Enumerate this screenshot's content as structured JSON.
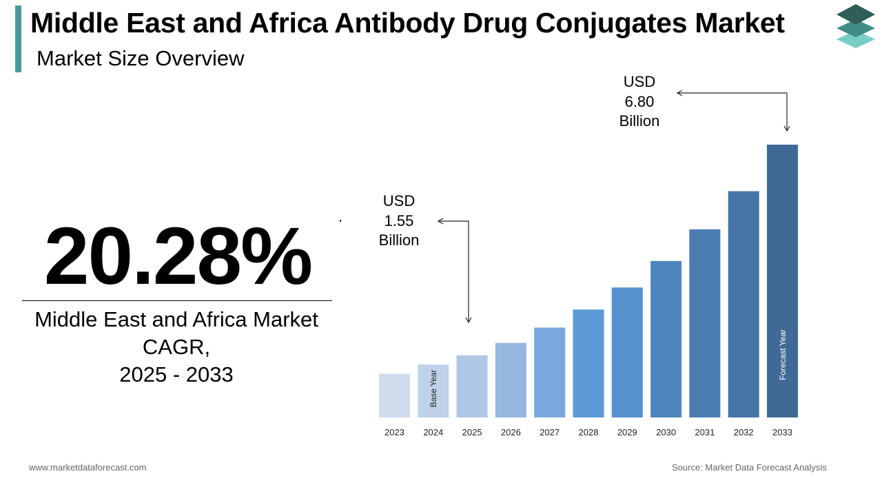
{
  "header": {
    "title": "Middle East and Africa Antibody Drug Conjugates Market",
    "subtitle": "Market Size Overview"
  },
  "logo": {
    "icon": "stacked-layers-logo-icon"
  },
  "cagr": {
    "value": "20.28%",
    "label_line1": "Middle East and Africa Market",
    "label_line2": "CAGR,",
    "label_line3": "2025 - 2033"
  },
  "callouts": {
    "start": {
      "line1": "USD",
      "line2": "1.55",
      "line3": "Billion"
    },
    "end": {
      "line1": "USD",
      "line2": "6.80",
      "line3": "Billion"
    }
  },
  "chart_data": {
    "type": "bar",
    "categories": [
      "2023",
      "2024",
      "2025",
      "2026",
      "2027",
      "2028",
      "2029",
      "2030",
      "2031",
      "2032",
      "2033"
    ],
    "values": [
      1.09,
      1.32,
      1.55,
      1.86,
      2.24,
      2.69,
      3.24,
      3.9,
      4.69,
      5.64,
      6.8
    ],
    "ylim": [
      0,
      6.8
    ],
    "colors": [
      "#cfdcee",
      "#bfd2ea",
      "#aec7e5",
      "#95b7df",
      "#78a8dd",
      "#5b9ad6",
      "#5691cd",
      "#4f86bf",
      "#4a7eb3",
      "#4676a7",
      "#3f6a96"
    ],
    "bar_tags": [
      {
        "category": "2024",
        "text": "Base Year",
        "color": "#222222"
      },
      {
        "category": "2033",
        "text": "Forecast Year",
        "color": "#ffffff"
      }
    ],
    "grid": false,
    "legend": "none"
  },
  "footer": {
    "website": "www.marketdataforecast.com",
    "source": "Source: Market Data Forecast Analysis"
  }
}
